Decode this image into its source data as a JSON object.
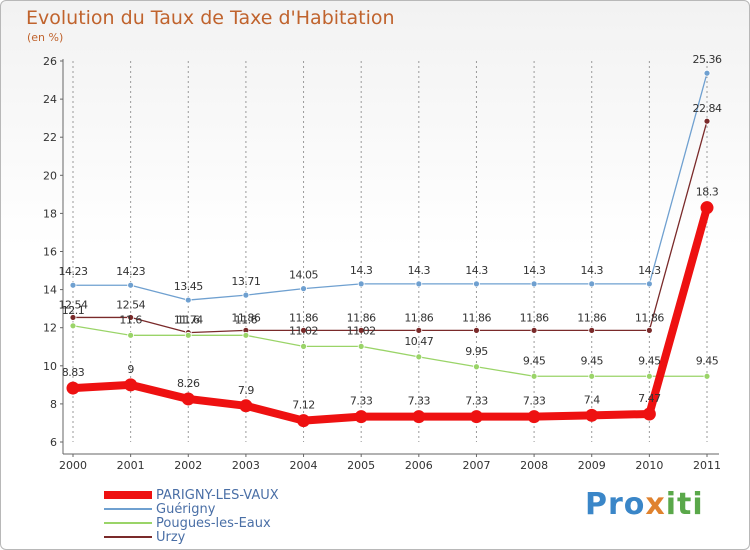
{
  "header": {
    "title": "Evolution du Taux de Taxe d'Habitation",
    "unit": "(en %)"
  },
  "brand": {
    "p1": "Pro",
    "p2": "x",
    "p3": "iti"
  },
  "chart_data": {
    "type": "line",
    "title": "Evolution du Taux de Taxe d'Habitation",
    "ylabel": "(en %)",
    "x": [
      "2000",
      "2001",
      "2002",
      "2003",
      "2004",
      "2005",
      "2006",
      "2007",
      "2008",
      "2009",
      "2010",
      "2011"
    ],
    "ylim": [
      6,
      26
    ],
    "yticks": [
      6,
      8,
      10,
      12,
      14,
      16,
      18,
      20,
      22,
      24,
      26
    ],
    "grid": "vertical-dashed",
    "legend": "bottom-left",
    "series": [
      {
        "name": "Guérigny",
        "color": "#6fa0d0",
        "values": [
          14.23,
          14.23,
          13.45,
          13.71,
          14.05,
          14.3,
          14.3,
          14.3,
          14.3,
          14.3,
          14.3,
          25.36
        ],
        "labels": [
          "14.23",
          "14.23",
          "13.45",
          "13.71",
          "14.05",
          "14.3",
          "14.3",
          "14.3",
          "14.3",
          "14.3",
          "14.3",
          "25.36"
        ]
      },
      {
        "name": "Urzy",
        "color": "#7a2a2a",
        "values": [
          12.54,
          12.54,
          11.74,
          11.86,
          11.86,
          11.86,
          11.86,
          11.86,
          11.86,
          11.86,
          11.86,
          22.84
        ],
        "labels": [
          "12.54",
          "12.54",
          "11.74",
          "11.86",
          "11.86",
          "11.86",
          "11.86",
          "11.86",
          "11.86",
          "11.86",
          "11.86",
          "22.84"
        ]
      },
      {
        "name": "Pougues-les-Eaux",
        "color": "#9ad468",
        "values": [
          12.1,
          11.6,
          11.6,
          11.6,
          11.02,
          11.02,
          10.47,
          9.95,
          9.45,
          9.45,
          9.45,
          9.45
        ],
        "labels": [
          "12.1",
          "11.6",
          "11.6",
          "11.6",
          "11.02",
          "11.02",
          "10.47",
          "9.95",
          "9.45",
          "9.45",
          "9.45",
          "9.45"
        ]
      },
      {
        "name": "PARIGNY-LES-VAUX",
        "color": "#ee1111",
        "values": [
          8.83,
          9,
          8.26,
          7.9,
          7.12,
          7.33,
          7.33,
          7.33,
          7.33,
          7.4,
          7.47,
          18.3
        ],
        "labels": [
          "8.83",
          "9",
          "8.26",
          "7.9",
          "7.12",
          "7.33",
          "7.33",
          "7.33",
          "7.33",
          "7.4",
          "7.47",
          "18.3"
        ]
      }
    ]
  },
  "legend": {
    "items": [
      {
        "label": "PARIGNY-LES-VAUX",
        "color": "#ee1111"
      },
      {
        "label": "Guérigny",
        "color": "#6fa0d0"
      },
      {
        "label": "Pougues-les-Eaux",
        "color": "#9ad468"
      },
      {
        "label": "Urzy",
        "color": "#7a2a2a"
      }
    ]
  }
}
